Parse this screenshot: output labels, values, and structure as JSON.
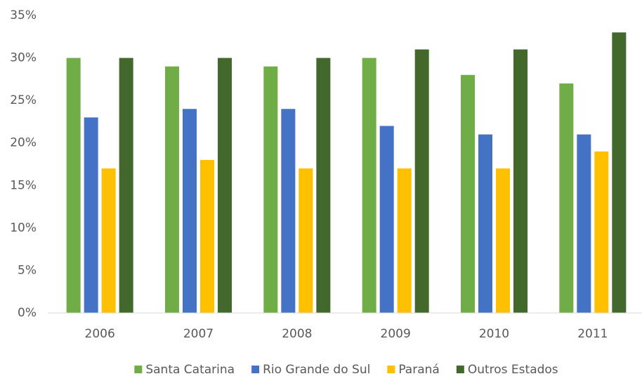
{
  "chart_data": {
    "type": "bar",
    "categories": [
      "2006",
      "2007",
      "2008",
      "2009",
      "2010",
      "2011"
    ],
    "series": [
      {
        "name": "Santa Catarina",
        "color": "#70ad47",
        "values": [
          30,
          29,
          29,
          30,
          28,
          27
        ]
      },
      {
        "name": "Rio Grande do Sul",
        "color": "#4472c4",
        "values": [
          23,
          24,
          24,
          22,
          21,
          21
        ]
      },
      {
        "name": "Paraná",
        "color": "#ffc000",
        "values": [
          17,
          18,
          17,
          17,
          17,
          19
        ]
      },
      {
        "name": "Outros Estados",
        "color": "#43682b",
        "values": [
          30,
          30,
          30,
          31,
          31,
          33
        ]
      }
    ],
    "ylim": [
      0,
      35
    ],
    "yticks": [
      {
        "value": 0,
        "label": "0%"
      },
      {
        "value": 5,
        "label": "5%"
      },
      {
        "value": 10,
        "label": "10%"
      },
      {
        "value": 15,
        "label": "15%"
      },
      {
        "value": 20,
        "label": "20%"
      },
      {
        "value": 25,
        "label": "25%"
      },
      {
        "value": 30,
        "label": "30%"
      },
      {
        "value": 35,
        "label": "35%"
      }
    ],
    "grid": false,
    "legend": "bottom"
  }
}
